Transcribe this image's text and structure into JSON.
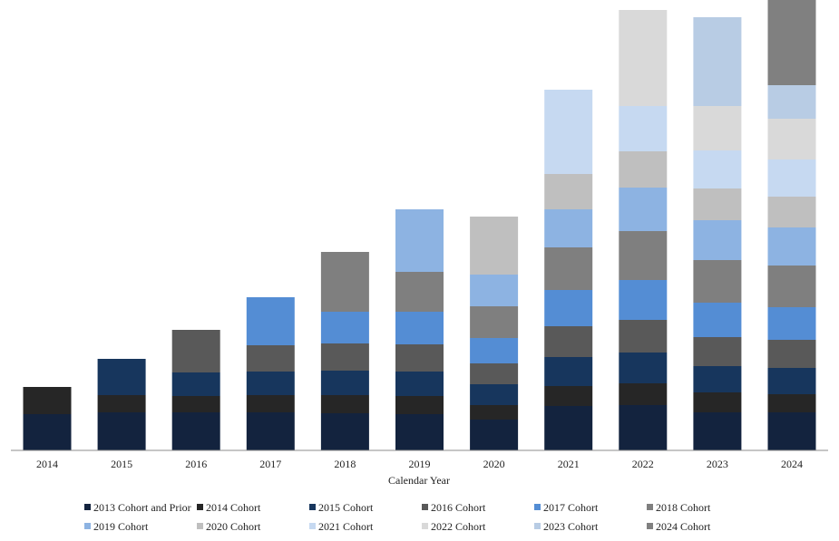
{
  "chart_data": {
    "type": "bar",
    "stacked": true,
    "title": "",
    "xlabel": "Calendar Year",
    "ylabel": "",
    "ylim": [
      0,
      485
    ],
    "grid": false,
    "legend_position": "bottom",
    "categories": [
      "2014",
      "2015",
      "2016",
      "2017",
      "2018",
      "2019",
      "2020",
      "2021",
      "2022",
      "2023",
      "2024"
    ],
    "series": [
      {
        "name": "2013 Cohort and Prior",
        "color": "#13233e",
        "values": [
          40,
          42,
          42,
          42,
          41,
          40,
          34,
          49,
          50,
          42,
          42
        ]
      },
      {
        "name": "2014 Cohort",
        "color": "#262626",
        "values": [
          30,
          19,
          18,
          19,
          20,
          20,
          16,
          22,
          24,
          22,
          20
        ]
      },
      {
        "name": "2015 Cohort",
        "color": "#17365d",
        "values": [
          0,
          40,
          26,
          26,
          27,
          27,
          23,
          32,
          34,
          29,
          29
        ]
      },
      {
        "name": "2016 Cohort",
        "color": "#595959",
        "values": [
          0,
          0,
          47,
          29,
          30,
          30,
          23,
          34,
          36,
          32,
          31
        ]
      },
      {
        "name": "2017 Cohort",
        "color": "#548dd4",
        "values": [
          0,
          0,
          0,
          53,
          35,
          36,
          28,
          40,
          44,
          38,
          36
        ]
      },
      {
        "name": "2018 Cohort",
        "color": "#7f7f7f",
        "values": [
          0,
          0,
          0,
          0,
          66,
          44,
          35,
          47,
          54,
          47,
          46
        ]
      },
      {
        "name": "2019 Cohort",
        "color": "#8db3e2",
        "values": [
          0,
          0,
          0,
          0,
          0,
          69,
          35,
          42,
          48,
          44,
          42
        ]
      },
      {
        "name": "2020 Cohort",
        "color": "#bfbfbf",
        "values": [
          0,
          0,
          0,
          0,
          0,
          0,
          64,
          39,
          40,
          35,
          34
        ]
      },
      {
        "name": "2021 Cohort",
        "color": "#c6d9f1",
        "values": [
          0,
          0,
          0,
          0,
          0,
          0,
          0,
          93,
          50,
          42,
          41
        ]
      },
      {
        "name": "2022 Cohort",
        "color": "#d9d9d9",
        "values": [
          0,
          0,
          0,
          0,
          0,
          0,
          0,
          0,
          106,
          49,
          45
        ]
      },
      {
        "name": "2023 Cohort",
        "color": "#b8cce4",
        "values": [
          0,
          0,
          0,
          0,
          0,
          0,
          0,
          0,
          0,
          98,
          37
        ]
      },
      {
        "name": "2024 Cohort",
        "color": "#808080",
        "values": [
          0,
          0,
          0,
          0,
          0,
          0,
          0,
          0,
          0,
          0,
          96
        ]
      }
    ]
  }
}
